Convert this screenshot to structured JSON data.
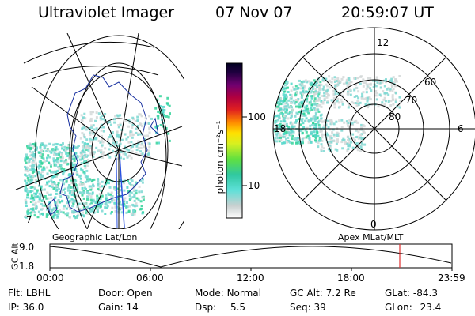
{
  "header": {
    "instrument": "Ultraviolet Imager",
    "date": "07 Nov 07",
    "time": "20:59:07 UT"
  },
  "left_panel": {
    "label": "Geographic Lat/Lon",
    "corner_label": "7"
  },
  "right_panel": {
    "label": "Apex MLat/MLT",
    "hours": {
      "top": "12",
      "left": "18",
      "right": "6",
      "bottom": "0"
    },
    "latitudes": [
      "60",
      "70",
      "80"
    ]
  },
  "colorbar": {
    "unit_label": "photon cm⁻²s⁻¹",
    "ticks": [
      "100",
      "10"
    ],
    "scale": "log"
  },
  "altitude_plot": {
    "ylabel": "GC Alt",
    "yticks": [
      "9.0",
      "1.8"
    ],
    "xticks": [
      "00:00",
      "06:00",
      "12:00",
      "18:00",
      "23:59"
    ],
    "current_time_color": "#e03030"
  },
  "status": {
    "row1": [
      {
        "key": "Flt:",
        "value": "LBHL"
      },
      {
        "key": "Door:",
        "value": "Open"
      },
      {
        "key": "Mode:",
        "value": "Normal"
      },
      {
        "key": "GC Alt:",
        "value": "7.2 Re"
      },
      {
        "key": "GLat:",
        "value": "-84.3"
      }
    ],
    "row2": [
      {
        "key": "IP:",
        "value": "36.0"
      },
      {
        "key": "Gain:",
        "value": "14"
      },
      {
        "key": "Dsp:",
        "value": "5.5"
      },
      {
        "key": "Seq:",
        "value": "39"
      },
      {
        "key": "GLon:",
        "value": "23.4"
      }
    ]
  },
  "colors": {
    "auroral_dim": "#7dd8d2",
    "auroral_mid": "#4fd7c9",
    "auroral_bright": "#33d49a",
    "gray_emission": "#d4d8d8",
    "coastline": "#1830a0",
    "meridian_line": "#2a52e0"
  }
}
